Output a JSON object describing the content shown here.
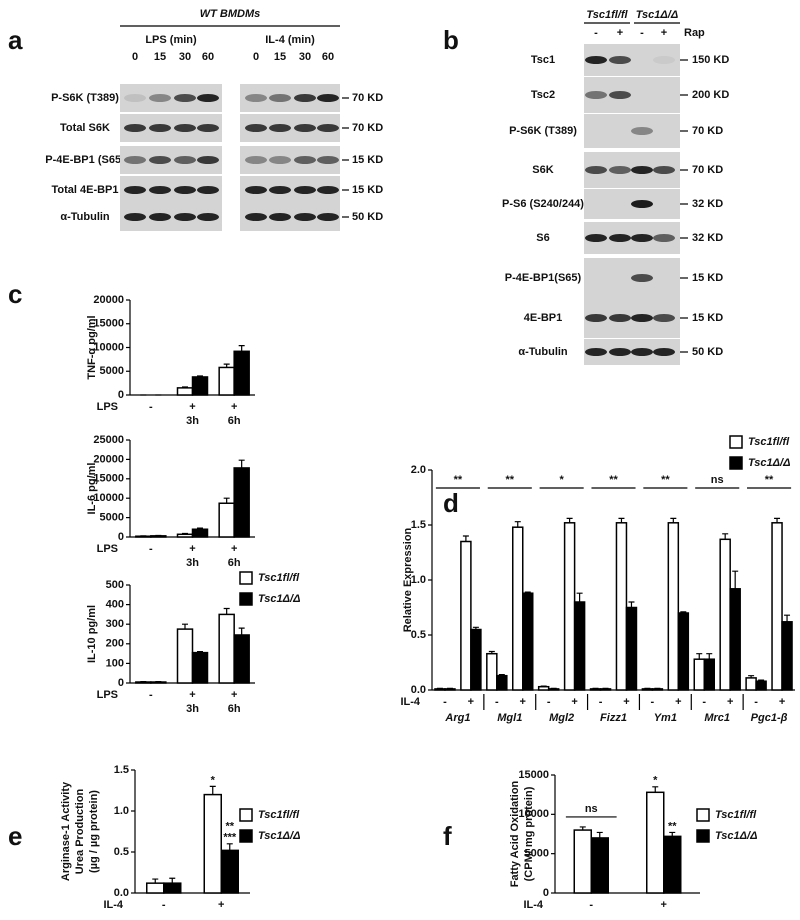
{
  "panel_letters": [
    "a",
    "b",
    "c",
    "d",
    "e",
    "f"
  ],
  "blots": {
    "a": {
      "title": "WT BMDMs",
      "groups": [
        {
          "label": "LPS (min)",
          "lanes": [
            "0",
            "15",
            "30",
            "60"
          ]
        },
        {
          "label": "IL-4 (min)",
          "lanes": [
            "0",
            "15",
            "30",
            "60"
          ]
        }
      ],
      "rows": [
        {
          "label": "P-S6K (T389)",
          "size": "70 KD"
        },
        {
          "label": "Total S6K",
          "size": "70 KD"
        },
        {
          "label": "P-4E-BP1 (S65)",
          "size": "15 KD"
        },
        {
          "label": "Total 4E-BP1",
          "size": "15 KD"
        },
        {
          "label": "α-Tubulin",
          "size": "50 KD"
        }
      ]
    },
    "b": {
      "groups": [
        {
          "label": "Tsc1fl/fl"
        },
        {
          "label": "Tsc1Δ/Δ"
        }
      ],
      "lanes": [
        "-",
        "+",
        "-",
        "+"
      ],
      "treatment": "Rap",
      "rows": [
        {
          "label": "Tsc1",
          "size": "150 KD"
        },
        {
          "label": "Tsc2",
          "size": "200 KD"
        },
        {
          "label": "P-S6K (T389)",
          "size": "70 KD"
        },
        {
          "label": "S6K",
          "size": "70 KD"
        },
        {
          "label": "P-S6 (S240/244)",
          "size": "32 KD"
        },
        {
          "label": "S6",
          "size": "32 KD"
        },
        {
          "label": "P-4E-BP1(S65)",
          "size": "15 KD"
        },
        {
          "label": "4E-BP1",
          "size": "15 KD"
        },
        {
          "label": "α-Tubulin",
          "size": "50 KD"
        }
      ]
    }
  },
  "chart_data": [
    {
      "type": "bar",
      "ylabel": "TNF-α pg/ml",
      "x_label": "LPS",
      "categories": [
        "-",
        "+",
        "+"
      ],
      "sublabels": [
        null,
        "3h",
        "6h"
      ],
      "ylim": [
        0,
        20000
      ],
      "yticks": [
        0,
        5000,
        10000,
        15000,
        20000
      ],
      "series": [
        {
          "name": "Tsc1fl/fl",
          "color": "#ffffff",
          "values": [
            0,
            1500,
            5800
          ],
          "errors": [
            0,
            200,
            700
          ]
        },
        {
          "name": "Tsc1Δ/Δ",
          "color": "#000000",
          "values": [
            0,
            3800,
            9200
          ],
          "errors": [
            0,
            200,
            1200
          ]
        }
      ]
    },
    {
      "type": "bar",
      "ylabel": "IL-6 pg/ml",
      "x_label": "LPS",
      "categories": [
        "-",
        "+",
        "+"
      ],
      "sublabels": [
        null,
        "3h",
        "6h"
      ],
      "ylim": [
        0,
        25000
      ],
      "yticks": [
        0,
        5000,
        10000,
        15000,
        20000,
        25000
      ],
      "series": [
        {
          "name": "Tsc1fl/fl",
          "color": "#ffffff",
          "values": [
            200,
            700,
            8700
          ],
          "errors": [
            100,
            200,
            1300
          ]
        },
        {
          "name": "Tsc1Δ/Δ",
          "color": "#000000",
          "values": [
            300,
            2000,
            17800
          ],
          "errors": [
            100,
            300,
            2000
          ]
        }
      ]
    },
    {
      "type": "bar",
      "ylabel": "IL-10 pg/ml",
      "x_label": "LPS",
      "legend": true,
      "categories": [
        "-",
        "+",
        "+"
      ],
      "sublabels": [
        null,
        "3h",
        "6h"
      ],
      "ylim": [
        0,
        500
      ],
      "yticks": [
        0,
        100,
        200,
        300,
        400,
        500
      ],
      "series": [
        {
          "name": "Tsc1fl/fl",
          "color": "#ffffff",
          "values": [
            5,
            275,
            350
          ],
          "errors": [
            2,
            25,
            30
          ]
        },
        {
          "name": "Tsc1Δ/Δ",
          "color": "#000000",
          "values": [
            5,
            155,
            245
          ],
          "errors": [
            2,
            5,
            35
          ]
        }
      ]
    },
    {
      "type": "bar",
      "ylabel": "Relative Expression",
      "x_label": "IL-4",
      "legend": true,
      "categories": [
        "-",
        "+",
        "-",
        "+",
        "-",
        "+",
        "-",
        "+",
        "-",
        "+",
        "-",
        "+",
        "-",
        "+"
      ],
      "groups": [
        "Arg1",
        "Mgl1",
        "Mgl2",
        "Fizz1",
        "Ym1",
        "Mrc1",
        "Pgc1-β"
      ],
      "group_labels": [
        "**",
        "**",
        "*",
        "**",
        "**",
        "ns",
        "**"
      ],
      "ylim": [
        0,
        2
      ],
      "yticks": [
        {
          "value": 0,
          "label": "0.0"
        },
        0.5,
        {
          "value": 1,
          "label": "1.0"
        },
        1.5,
        {
          "value": 2,
          "label": "2.0"
        }
      ],
      "series": [
        {
          "name": "Tsc1fl/fl",
          "color": "#ffffff",
          "values": [
            0.01,
            1.35,
            0.33,
            1.48,
            0.03,
            1.52,
            0.01,
            1.52,
            0.01,
            1.52,
            0.28,
            1.37,
            0.11,
            1.52
          ],
          "errors": [
            0.005,
            0.05,
            0.02,
            0.05,
            0.005,
            0.04,
            0.005,
            0.04,
            0.005,
            0.04,
            0.05,
            0.05,
            0.02,
            0.04
          ]
        },
        {
          "name": "Tsc1Δ/Δ",
          "color": "#000000",
          "values": [
            0.01,
            0.55,
            0.13,
            0.88,
            0.01,
            0.8,
            0.01,
            0.75,
            0.01,
            0.7,
            0.28,
            0.92,
            0.08,
            0.62
          ],
          "errors": [
            0.005,
            0.02,
            0.01,
            0.01,
            0.005,
            0.08,
            0.005,
            0.05,
            0.005,
            0.01,
            0.05,
            0.16,
            0.01,
            0.06
          ]
        }
      ]
    },
    {
      "type": "bar",
      "ylabel": [
        "Arginase-1 Activity",
        "Urea Production",
        "(µg / µg protein)"
      ],
      "x_label": "IL-4",
      "legend": true,
      "categories": [
        "-",
        "+"
      ],
      "ylim": [
        0,
        1.5
      ],
      "yticks": [
        {
          "value": 0,
          "label": "0.0"
        },
        0.5,
        {
          "value": 1,
          "label": "1.0"
        },
        1.5
      ],
      "series": [
        {
          "name": "Tsc1fl/fl",
          "color": "#ffffff",
          "values": [
            0.12,
            1.2
          ],
          "errors": [
            0.05,
            0.1
          ],
          "stars": [
            null,
            "*"
          ]
        },
        {
          "name": "Tsc1Δ/Δ",
          "color": "#000000",
          "values": [
            0.12,
            0.52
          ],
          "errors": [
            0.06,
            0.08
          ],
          "stars": [
            null,
            [
              "**",
              "***"
            ]
          ]
        }
      ]
    },
    {
      "type": "bar",
      "ylabel": [
        "Fatty Acid Oxidation",
        "(CPM/ mg protein)"
      ],
      "x_label": "IL-4",
      "legend": true,
      "categories": [
        "-",
        "+"
      ],
      "group_labels": [
        "ns",
        null
      ],
      "ylim": [
        0,
        15000
      ],
      "yticks": [
        0,
        5000,
        10000,
        15000
      ],
      "series": [
        {
          "name": "Tsc1fl/fl",
          "color": "#ffffff",
          "values": [
            8000,
            12800
          ],
          "errors": [
            400,
            700
          ],
          "stars": [
            null,
            "*"
          ]
        },
        {
          "name": "Tsc1Δ/Δ",
          "color": "#000000",
          "values": [
            7000,
            7200
          ],
          "errors": [
            700,
            500
          ],
          "stars": [
            null,
            "**"
          ]
        }
      ]
    }
  ]
}
